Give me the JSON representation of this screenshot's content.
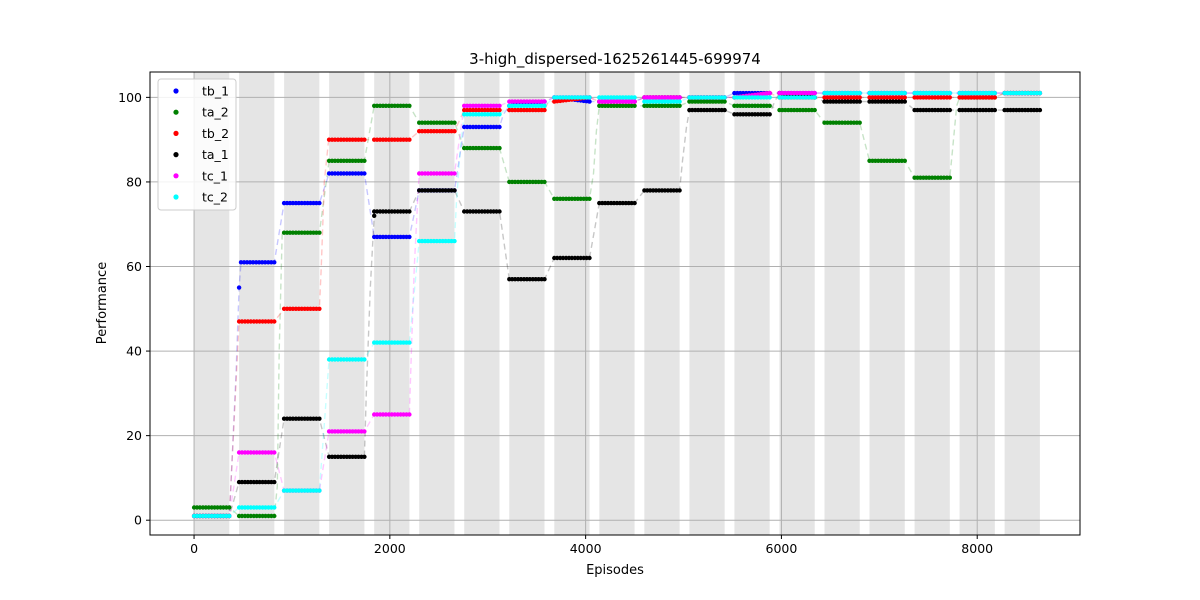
{
  "chart_data": {
    "type": "scatter",
    "title": "3-high_dispersed-1625261445-699974",
    "xlabel": "Episodes",
    "ylabel": "Performance",
    "xlim": [
      -450,
      9050
    ],
    "ylim": [
      -3.5,
      106
    ],
    "xticks": [
      0,
      2000,
      4000,
      6000,
      8000
    ],
    "yticks": [
      0,
      20,
      40,
      60,
      80,
      100
    ],
    "grid": true,
    "legend_position": "top-left",
    "band_edges": [
      0,
      360,
      460,
      820,
      920,
      1280,
      1380,
      1740,
      1840,
      2200,
      2300,
      2660,
      2760,
      3120,
      3220,
      3580,
      3680,
      4040,
      4140,
      4500,
      4600,
      4960,
      5060,
      5420,
      5520,
      5880,
      5980,
      6340,
      6440,
      6800,
      6900,
      7260,
      7360,
      7720,
      7820,
      8180,
      8280,
      8640
    ],
    "series": [
      {
        "name": "tb_1",
        "color": "#0000ff",
        "points": [
          [
            0,
            1
          ],
          [
            360,
            1
          ],
          [
            370,
            5
          ],
          [
            400,
            20
          ],
          [
            430,
            35
          ],
          [
            460,
            55
          ],
          [
            480,
            61
          ],
          [
            820,
            61
          ],
          [
            920,
            75
          ],
          [
            1280,
            75
          ],
          [
            1380,
            82
          ],
          [
            1740,
            82
          ],
          [
            1840,
            67
          ],
          [
            2200,
            67
          ],
          [
            2300,
            78
          ],
          [
            2660,
            78
          ],
          [
            2760,
            93
          ],
          [
            3120,
            93
          ],
          [
            3160,
            96
          ],
          [
            3220,
            98
          ],
          [
            3580,
            99
          ],
          [
            3680,
            100
          ],
          [
            4040,
            99
          ],
          [
            4140,
            99
          ],
          [
            4500,
            99
          ],
          [
            4600,
            100
          ],
          [
            4960,
            100
          ],
          [
            5060,
            100
          ],
          [
            5420,
            100
          ],
          [
            5520,
            101
          ],
          [
            5880,
            101
          ],
          [
            5980,
            101
          ],
          [
            6340,
            101
          ],
          [
            6440,
            101
          ],
          [
            6800,
            101
          ],
          [
            6900,
            101
          ],
          [
            7260,
            101
          ],
          [
            7360,
            101
          ],
          [
            7720,
            101
          ],
          [
            7820,
            101
          ],
          [
            8180,
            101
          ],
          [
            8280,
            101
          ],
          [
            8640,
            101
          ]
        ]
      },
      {
        "name": "ta_2",
        "color": "#008000",
        "points": [
          [
            0,
            3
          ],
          [
            360,
            3
          ],
          [
            460,
            1
          ],
          [
            820,
            1
          ],
          [
            850,
            8
          ],
          [
            870,
            40
          ],
          [
            900,
            68
          ],
          [
            920,
            68
          ],
          [
            1280,
            68
          ],
          [
            1380,
            85
          ],
          [
            1740,
            85
          ],
          [
            1840,
            98
          ],
          [
            2200,
            98
          ],
          [
            2300,
            94
          ],
          [
            2660,
            94
          ],
          [
            2760,
            88
          ],
          [
            3120,
            88
          ],
          [
            3220,
            80
          ],
          [
            3580,
            80
          ],
          [
            3680,
            76
          ],
          [
            4040,
            76
          ],
          [
            4080,
            82
          ],
          [
            4110,
            92
          ],
          [
            4140,
            98
          ],
          [
            4500,
            98
          ],
          [
            4600,
            98
          ],
          [
            4960,
            98
          ],
          [
            5060,
            99
          ],
          [
            5420,
            99
          ],
          [
            5520,
            98
          ],
          [
            5880,
            98
          ],
          [
            5980,
            97
          ],
          [
            6340,
            97
          ],
          [
            6440,
            94
          ],
          [
            6800,
            94
          ],
          [
            6900,
            85
          ],
          [
            7260,
            85
          ],
          [
            7360,
            81
          ],
          [
            7720,
            81
          ],
          [
            7750,
            88
          ],
          [
            7790,
            98
          ],
          [
            7820,
            100
          ],
          [
            8180,
            100
          ],
          [
            8280,
            101
          ],
          [
            8640,
            101
          ]
        ]
      },
      {
        "name": "tb_2",
        "color": "#ff0000",
        "points": [
          [
            0,
            1
          ],
          [
            360,
            1
          ],
          [
            460,
            47
          ],
          [
            820,
            47
          ],
          [
            920,
            50
          ],
          [
            1280,
            50
          ],
          [
            1300,
            60
          ],
          [
            1330,
            80
          ],
          [
            1370,
            89
          ],
          [
            1380,
            90
          ],
          [
            1740,
            90
          ],
          [
            1840,
            90
          ],
          [
            2200,
            90
          ],
          [
            2300,
            92
          ],
          [
            2660,
            92
          ],
          [
            2760,
            97
          ],
          [
            3120,
            97
          ],
          [
            3220,
            97
          ],
          [
            3580,
            97
          ],
          [
            3620,
            99
          ],
          [
            3680,
            99
          ],
          [
            4040,
            100
          ],
          [
            4140,
            99
          ],
          [
            4500,
            99
          ],
          [
            4600,
            100
          ],
          [
            4960,
            100
          ],
          [
            5060,
            100
          ],
          [
            5420,
            100
          ],
          [
            5520,
            100
          ],
          [
            5880,
            101
          ],
          [
            5980,
            100
          ],
          [
            6340,
            100
          ],
          [
            6440,
            100
          ],
          [
            6800,
            100
          ],
          [
            6900,
            100
          ],
          [
            7260,
            100
          ],
          [
            7360,
            100
          ],
          [
            7720,
            100
          ],
          [
            7820,
            100
          ],
          [
            8180,
            100
          ],
          [
            8280,
            101
          ],
          [
            8640,
            101
          ]
        ]
      },
      {
        "name": "ta_1",
        "color": "#000000",
        "points": [
          [
            0,
            1
          ],
          [
            360,
            1
          ],
          [
            460,
            9
          ],
          [
            820,
            9
          ],
          [
            920,
            24
          ],
          [
            1280,
            24
          ],
          [
            1380,
            15
          ],
          [
            1740,
            15
          ],
          [
            1760,
            30
          ],
          [
            1800,
            55
          ],
          [
            1840,
            72
          ],
          [
            1840,
            73
          ],
          [
            2200,
            73
          ],
          [
            2300,
            78
          ],
          [
            2660,
            78
          ],
          [
            2760,
            73
          ],
          [
            3120,
            73
          ],
          [
            3220,
            57
          ],
          [
            3580,
            57
          ],
          [
            3680,
            62
          ],
          [
            4040,
            62
          ],
          [
            4140,
            75
          ],
          [
            4500,
            75
          ],
          [
            4600,
            78
          ],
          [
            4960,
            78
          ],
          [
            4990,
            85
          ],
          [
            5030,
            93
          ],
          [
            5060,
            97
          ],
          [
            5420,
            97
          ],
          [
            5520,
            96
          ],
          [
            5880,
            96
          ],
          [
            5930,
            99
          ],
          [
            5980,
            101
          ],
          [
            6340,
            100
          ],
          [
            6440,
            99
          ],
          [
            6800,
            99
          ],
          [
            6900,
            99
          ],
          [
            7260,
            99
          ],
          [
            7360,
            97
          ],
          [
            7720,
            97
          ],
          [
            7820,
            97
          ],
          [
            8180,
            97
          ],
          [
            8280,
            97
          ],
          [
            8640,
            97
          ]
        ]
      },
      {
        "name": "tc_1",
        "color": "#ff00ff",
        "points": [
          [
            0,
            1
          ],
          [
            360,
            1
          ],
          [
            460,
            16
          ],
          [
            820,
            16
          ],
          [
            920,
            7
          ],
          [
            1280,
            7
          ],
          [
            1380,
            21
          ],
          [
            1740,
            21
          ],
          [
            1840,
            25
          ],
          [
            2200,
            25
          ],
          [
            2220,
            40
          ],
          [
            2250,
            60
          ],
          [
            2290,
            78
          ],
          [
            2300,
            82
          ],
          [
            2660,
            82
          ],
          [
            2760,
            98
          ],
          [
            3120,
            98
          ],
          [
            3220,
            99
          ],
          [
            3580,
            99
          ],
          [
            3680,
            100
          ],
          [
            4040,
            100
          ],
          [
            4140,
            99
          ],
          [
            4500,
            99
          ],
          [
            4600,
            100
          ],
          [
            4960,
            100
          ],
          [
            5060,
            100
          ],
          [
            5420,
            100
          ],
          [
            5520,
            100
          ],
          [
            5880,
            101
          ],
          [
            5980,
            101
          ],
          [
            6340,
            101
          ],
          [
            6440,
            101
          ],
          [
            6800,
            101
          ],
          [
            6900,
            101
          ],
          [
            7260,
            101
          ],
          [
            7360,
            101
          ],
          [
            7720,
            101
          ],
          [
            7820,
            101
          ],
          [
            8180,
            101
          ],
          [
            8280,
            101
          ],
          [
            8640,
            101
          ]
        ]
      },
      {
        "name": "tc_2",
        "color": "#00ffff",
        "points": [
          [
            0,
            1
          ],
          [
            360,
            1
          ],
          [
            460,
            3
          ],
          [
            820,
            3
          ],
          [
            920,
            7
          ],
          [
            1280,
            7
          ],
          [
            1380,
            38
          ],
          [
            1740,
            38
          ],
          [
            1840,
            42
          ],
          [
            2200,
            42
          ],
          [
            2300,
            66
          ],
          [
            2660,
            66
          ],
          [
            2680,
            75
          ],
          [
            2720,
            88
          ],
          [
            2760,
            96
          ],
          [
            3120,
            96
          ],
          [
            3220,
            98
          ],
          [
            3580,
            98
          ],
          [
            3680,
            100
          ],
          [
            4040,
            100
          ],
          [
            4140,
            100
          ],
          [
            4500,
            100
          ],
          [
            4600,
            99
          ],
          [
            4960,
            99
          ],
          [
            5060,
            100
          ],
          [
            5420,
            100
          ],
          [
            5520,
            100
          ],
          [
            5880,
            100
          ],
          [
            5980,
            100
          ],
          [
            6340,
            100
          ],
          [
            6440,
            101
          ],
          [
            6800,
            101
          ],
          [
            6900,
            101
          ],
          [
            7260,
            101
          ],
          [
            7360,
            101
          ],
          [
            7720,
            101
          ],
          [
            7820,
            101
          ],
          [
            8180,
            101
          ],
          [
            8280,
            101
          ],
          [
            8640,
            101
          ]
        ]
      }
    ]
  }
}
